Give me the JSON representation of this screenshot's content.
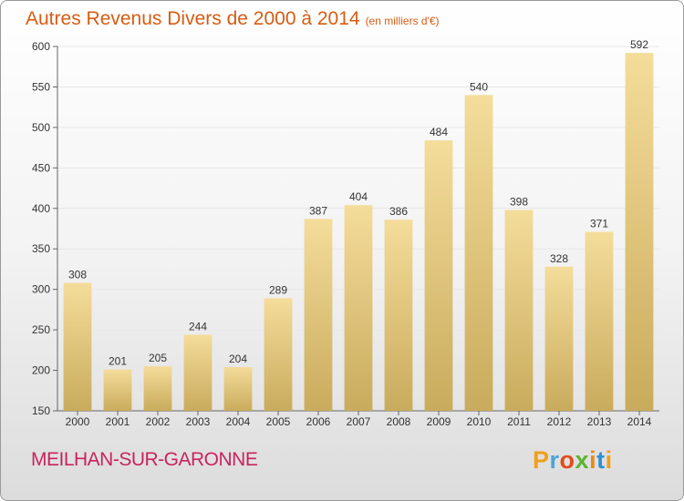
{
  "header": {
    "title": "Autres Revenus Divers de 2000 à 2014",
    "subtitle": "(en milliers d'€)"
  },
  "footer": {
    "commune": "MEILHAN-SUR-GARONNE",
    "logo": [
      "P",
      "r",
      "o",
      "x",
      "i",
      "t",
      "i"
    ]
  },
  "colors": {
    "title": "#d75c12",
    "commune": "#c8245f",
    "bar_top": "#f4dc9a",
    "bar_bottom": "#c9ab5c",
    "grid": "#e7e7e7"
  },
  "chart_data": {
    "type": "bar",
    "title": "Autres Revenus Divers de 2000 à 2014",
    "subtitle": "(en milliers d'€)",
    "xlabel": "",
    "ylabel": "",
    "ylim": [
      150,
      600
    ],
    "yticks": [
      150,
      200,
      250,
      300,
      350,
      400,
      450,
      500,
      550,
      600
    ],
    "grid": true,
    "categories": [
      "2000",
      "2001",
      "2002",
      "2003",
      "2004",
      "2005",
      "2006",
      "2007",
      "2008",
      "2009",
      "2010",
      "2011",
      "2012",
      "2013",
      "2014"
    ],
    "values": [
      308,
      201,
      205,
      244,
      204,
      289,
      387,
      404,
      386,
      484,
      540,
      398,
      328,
      371,
      592
    ]
  }
}
